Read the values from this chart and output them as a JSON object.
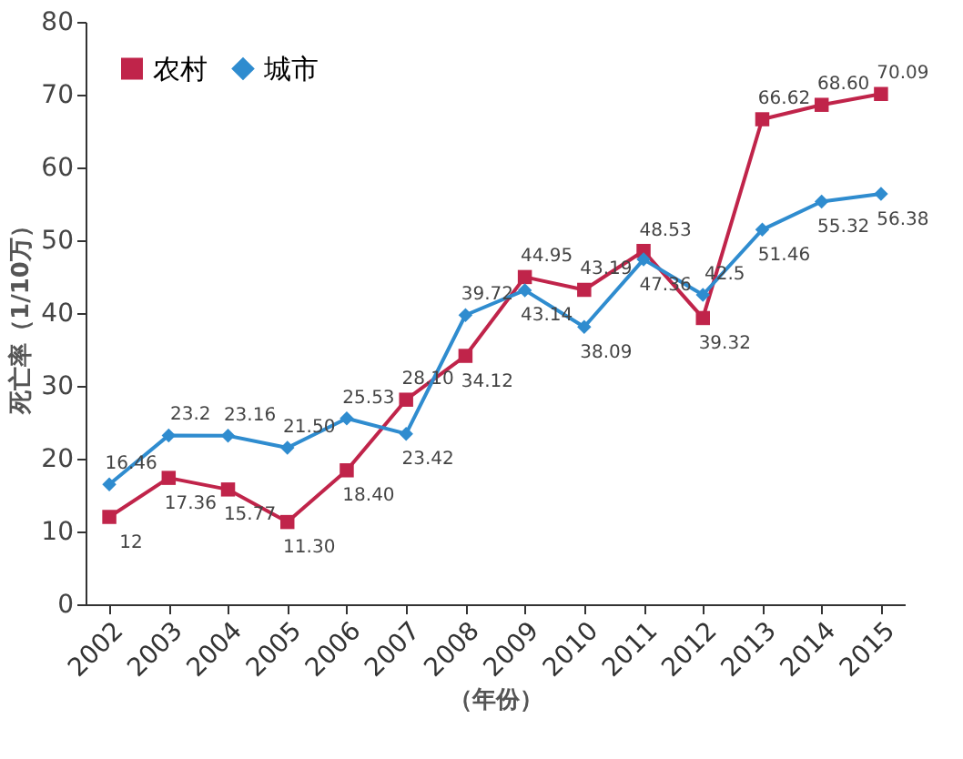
{
  "chart_data": {
    "type": "line",
    "xlabel": "（年份）",
    "ylabel": "死亡率（1/10万）",
    "categories": [
      "2002",
      "2003",
      "2004",
      "2005",
      "2006",
      "2007",
      "2008",
      "2009",
      "2010",
      "2011",
      "2012",
      "2013",
      "2014",
      "2015"
    ],
    "series": [
      {
        "name": "农村",
        "color": "#c0244a",
        "marker": "square",
        "values": [
          12,
          17.36,
          15.77,
          11.3,
          18.4,
          28.1,
          34.12,
          44.95,
          43.19,
          48.53,
          39.32,
          66.62,
          68.6,
          70.09
        ],
        "value_labels": [
          "12",
          "17.36",
          "15.77",
          "11.30",
          "18.40",
          "28.10",
          "34.12",
          "44.95",
          "43.19",
          "48.53",
          "39.32",
          "66.62",
          "68.60",
          "70.09"
        ]
      },
      {
        "name": "城市",
        "color": "#2f8ccf",
        "marker": "diamond",
        "values": [
          16.46,
          23.2,
          23.16,
          21.5,
          25.53,
          23.42,
          39.72,
          43.14,
          38.09,
          47.36,
          42.5,
          51.46,
          55.32,
          56.38
        ],
        "value_labels": [
          "16.46",
          "23.2",
          "23.16",
          "21.50",
          "25.53",
          "23.42",
          "39.72",
          "43.14",
          "38.09",
          "47.36",
          "42.5",
          "51.46",
          "55.32",
          "56.38"
        ]
      }
    ],
    "ylim": [
      0,
      80
    ],
    "yticks": [
      0,
      10,
      20,
      30,
      40,
      50,
      60,
      70,
      80
    ],
    "grid": false,
    "legend": "top left",
    "line_style": "solid"
  }
}
